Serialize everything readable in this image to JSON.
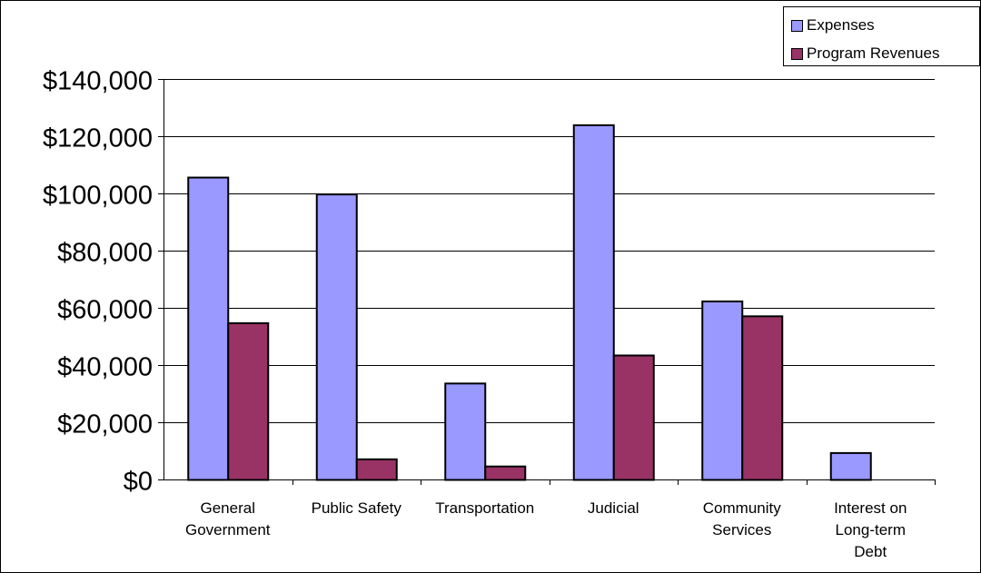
{
  "chart_data": {
    "type": "bar",
    "title": "",
    "xlabel": "",
    "ylabel": "",
    "categories": [
      [
        "General",
        "Government"
      ],
      [
        "Public Safety"
      ],
      [
        "Transportation"
      ],
      [
        "Judicial"
      ],
      [
        "Community",
        "Services"
      ],
      [
        "Interest on",
        "Long-term",
        "Debt"
      ]
    ],
    "series": [
      {
        "name": "Expenses",
        "color": "#9999ff",
        "values": [
          105700,
          99800,
          33700,
          124000,
          62400,
          9400
        ]
      },
      {
        "name": "Program Revenues",
        "color": "#993366",
        "values": [
          54800,
          7200,
          4700,
          43500,
          57200,
          0
        ]
      }
    ],
    "ylim": [
      0,
      140000
    ],
    "yticks": [
      0,
      20000,
      40000,
      60000,
      80000,
      100000,
      120000,
      140000
    ],
    "ytick_labels": [
      "$0",
      "$20,000",
      "$40,000",
      "$60,000",
      "$80,000",
      "$100,000",
      "$120,000",
      "$140,000"
    ],
    "grid": true,
    "legend_position": "top-right"
  }
}
